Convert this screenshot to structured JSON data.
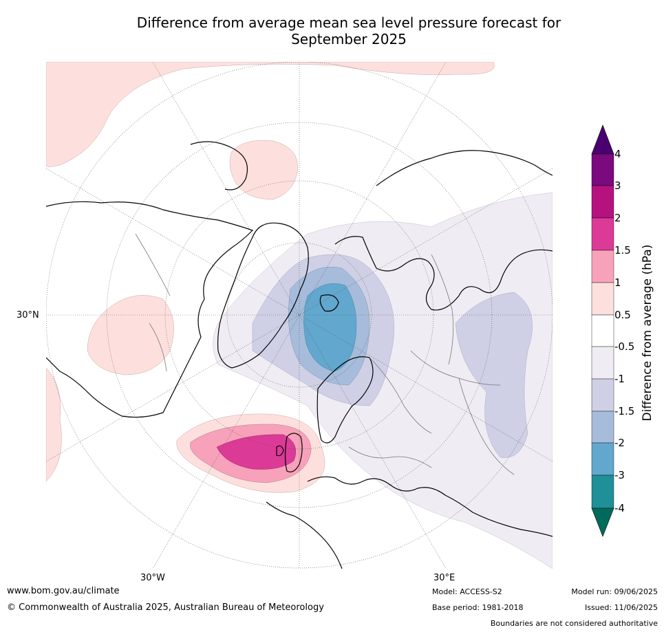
{
  "title": {
    "line1": "Difference from average mean sea level pressure forecast for",
    "line2": "September 2025"
  },
  "axis_labels": {
    "lat_30n": "30°N",
    "lon_30w": "30°W",
    "lon_30e": "30°E"
  },
  "colorbar": {
    "title": "Difference from average (hPa)",
    "ticks": [
      "4",
      "3",
      "2",
      "1.5",
      "1",
      "0.5",
      "-0.5",
      "-1",
      "-1.5",
      "-2",
      "-3",
      "-4"
    ],
    "colors": {
      "gt4": "#4b0070",
      "3_4": "#7a0a7e",
      "2_3": "#b5127f",
      "1.5_2": "#dc3a97",
      "1_1.5": "#f7a2ba",
      "0.5_1": "#fde0dd",
      "neg0.5_0.5": "#ffffff",
      "neg1_neg0.5": "#f0ecf4",
      "neg1.5_neg1": "#cfd0e5",
      "neg2_neg1.5": "#a6bcda",
      "neg3_neg2": "#62a7cd",
      "neg4_neg3": "#1f8f98",
      "lt_neg4": "#006b5c"
    }
  },
  "footer": {
    "website": "www.bom.gov.au/climate",
    "copyright": "© Commonwealth of Australia 2025, Australian Bureau of Meteorology",
    "model": "Model: ACCESS-S2",
    "base_period": "Base period: 1981-2018",
    "model_run": "Model run: 09/06/2025",
    "issued": "Issued: 11/06/2025",
    "disclaimer": "Boundaries are not considered authoritative"
  }
}
